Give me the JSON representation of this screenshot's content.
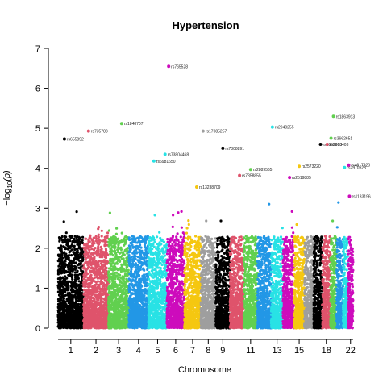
{
  "chart_data": {
    "type": "scatter",
    "title": "Hypertension",
    "xlabel": "Chromosome",
    "ylabel": "−log",
    "ylabel_sub": "10",
    "ylabel_tail": "(p)",
    "ylim": [
      0,
      7
    ],
    "y_ticks": [
      "0",
      "1",
      "2",
      "3",
      "4",
      "5",
      "6",
      "7"
    ],
    "x_tick_labels": [
      "1",
      "2",
      "3",
      "4",
      "5",
      "6",
      "7",
      "8",
      "9",
      "11",
      "13",
      "15",
      "18",
      "22"
    ],
    "x_tick_chromosomes": [
      1,
      2,
      3,
      4,
      5,
      6,
      7,
      8,
      9,
      11,
      13,
      15,
      18,
      22
    ],
    "chromosome_sizes": [
      248,
      242,
      198,
      190,
      181,
      171,
      159,
      145,
      138,
      134,
      135,
      133,
      114,
      107,
      102,
      90,
      83,
      80,
      59,
      64,
      47,
      51
    ],
    "colors": [
      "#000000",
      "#DF536B",
      "#61D04F",
      "#2297E6",
      "#28E2E5",
      "#CD0BBC",
      "#F5C710",
      "#9E9E9E"
    ],
    "labeled_snps": [
      {
        "id": "rs655892",
        "chr": 1,
        "pos": 0.25,
        "p": 4.73
      },
      {
        "id": "rs735783",
        "chr": 2,
        "pos": 0.2,
        "p": 4.93
      },
      {
        "id": "rs1848707",
        "chr": 3,
        "pos": 0.65,
        "p": 5.12
      },
      {
        "id": "rs6981650",
        "chr": 5,
        "pos": 0.3,
        "p": 4.18
      },
      {
        "id": "rs73804468",
        "chr": 5,
        "pos": 0.9,
        "p": 4.35
      },
      {
        "id": "rs765528",
        "chr": 6,
        "pos": 0.1,
        "p": 6.55
      },
      {
        "id": "rs13238709",
        "chr": 7,
        "pos": 0.75,
        "p": 3.53
      },
      {
        "id": "rs17085257",
        "chr": 8,
        "pos": 0.15,
        "p": 4.93
      },
      {
        "id": "rs7808891",
        "chr": 9,
        "pos": 0.5,
        "p": 4.5
      },
      {
        "id": "rs7858855",
        "chr": 10,
        "pos": 0.7,
        "p": 3.82
      },
      {
        "id": "rs2889565",
        "chr": 11,
        "pos": 0.5,
        "p": 3.97
      },
      {
        "id": "rs2940255",
        "chr": 13,
        "pos": 0.1,
        "p": 5.03
      },
      {
        "id": "rs2519885",
        "chr": 14,
        "pos": 0.6,
        "p": 3.77
      },
      {
        "id": "rs2573220",
        "chr": 15,
        "pos": 0.5,
        "p": 4.05
      },
      {
        "id": "rs1859813",
        "chr": 17,
        "pos": 0.8,
        "p": 4.6
      },
      {
        "id": "rs1863913",
        "chr": 19,
        "pos": 0.5,
        "p": 5.3
      },
      {
        "id": "rs3662651",
        "chr": 19,
        "pos": 0.1,
        "p": 4.75
      },
      {
        "id": "rs2968403",
        "chr": 18,
        "pos": 0.6,
        "p": 4.6
      },
      {
        "id": "rs2970528",
        "chr": 21,
        "pos": 0.3,
        "p": 4.02
      },
      {
        "id": "rs4617920",
        "chr": 22,
        "pos": 0.15,
        "p": 4.08
      },
      {
        "id": "rs1133196",
        "chr": 22,
        "pos": 0.3,
        "p": 3.3
      }
    ]
  }
}
